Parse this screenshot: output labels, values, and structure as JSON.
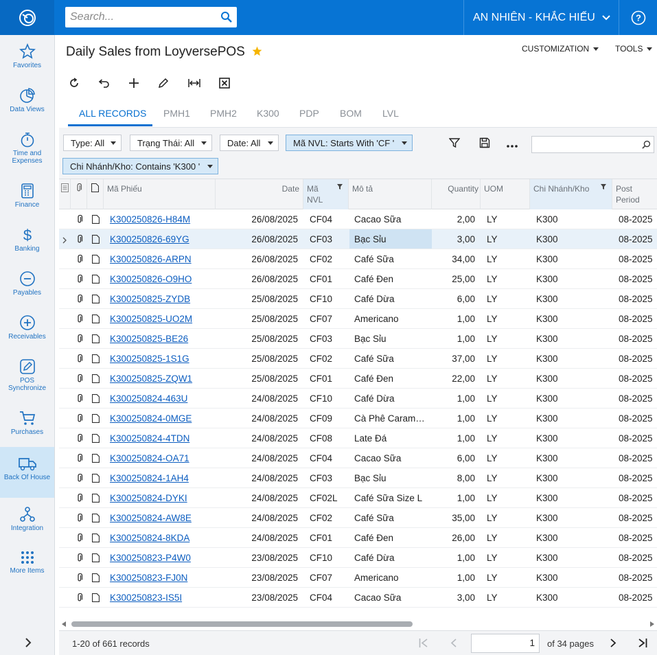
{
  "topbar": {
    "search_placeholder": "Search...",
    "tenant": "AN NHIÊN - KHẮC HIẾU",
    "help": "?"
  },
  "sidebar": {
    "items": [
      {
        "label": "Favorites",
        "icon": "star-icon"
      },
      {
        "label": "Data Views",
        "icon": "pie-chart-icon"
      },
      {
        "label": "Time and Expenses",
        "icon": "stopwatch-icon"
      },
      {
        "label": "Finance",
        "icon": "calculator-icon"
      },
      {
        "label": "Banking",
        "icon": "dollar-icon"
      },
      {
        "label": "Payables",
        "icon": "minus-circle-icon"
      },
      {
        "label": "Receivables",
        "icon": "plus-circle-icon"
      },
      {
        "label": "POS Synchronize",
        "icon": "pencil-square-icon"
      },
      {
        "label": "Purchases",
        "icon": "cart-icon"
      },
      {
        "label": "Back Of House",
        "icon": "truck-icon"
      },
      {
        "label": "Integration",
        "icon": "hierarchy-icon"
      },
      {
        "label": "More Items",
        "icon": "grid-dots-icon"
      }
    ],
    "active_index": 9
  },
  "page": {
    "title": "Daily Sales from LoyversePOS",
    "customization": "CUSTOMIZATION",
    "tools": "TOOLS"
  },
  "tabs": [
    "ALL RECORDS",
    "PMH1",
    "PMH2",
    "K300",
    "PDP",
    "BOM",
    "LVL"
  ],
  "filters": {
    "type": "Type: All",
    "trang_thai": "Trạng Thái: All",
    "date": "Date: All",
    "ma_nvl": "Mã NVL: Starts With 'CF '",
    "chi_nhanh": "Chi Nhánh/Kho: Contains 'K300 '"
  },
  "grid": {
    "headers": {
      "ma_phieu": "Mã Phiếu",
      "date": "Date",
      "ma_nvl": "Mã NVL",
      "mo_ta": "Mô tả",
      "quantity": "Quantity",
      "uom": "UOM",
      "chi_nhanh": "Chi Nhánh/Kho",
      "post_period": "Post Period"
    },
    "rows": [
      [
        "K300250826-H84M",
        "26/08/2025",
        "CF04",
        "Cacao Sữa",
        "2,00",
        "LY",
        "K300",
        "08-2025"
      ],
      [
        "K300250826-69YG",
        "26/08/2025",
        "CF03",
        "Bạc Sỉu",
        "3,00",
        "LY",
        "K300",
        "08-2025"
      ],
      [
        "K300250826-ARPN",
        "26/08/2025",
        "CF02",
        "Café Sữa",
        "34,00",
        "LY",
        "K300",
        "08-2025"
      ],
      [
        "K300250826-O9HO",
        "26/08/2025",
        "CF01",
        "Café Đen",
        "25,00",
        "LY",
        "K300",
        "08-2025"
      ],
      [
        "K300250825-ZYDB",
        "25/08/2025",
        "CF10",
        "Café Dừa",
        "6,00",
        "LY",
        "K300",
        "08-2025"
      ],
      [
        "K300250825-UO2M",
        "25/08/2025",
        "CF07",
        "Americano",
        "1,00",
        "LY",
        "K300",
        "08-2025"
      ],
      [
        "K300250825-BE26",
        "25/08/2025",
        "CF03",
        "Bạc Sỉu",
        "1,00",
        "LY",
        "K300",
        "08-2025"
      ],
      [
        "K300250825-1S1G",
        "25/08/2025",
        "CF02",
        "Café Sữa",
        "37,00",
        "LY",
        "K300",
        "08-2025"
      ],
      [
        "K300250825-ZQW1",
        "25/08/2025",
        "CF01",
        "Café Đen",
        "22,00",
        "LY",
        "K300",
        "08-2025"
      ],
      [
        "K300250824-463U",
        "24/08/2025",
        "CF10",
        "Café Dừa",
        "1,00",
        "LY",
        "K300",
        "08-2025"
      ],
      [
        "K300250824-0MGE",
        "24/08/2025",
        "CF09",
        "Cà Phê Caram…",
        "1,00",
        "LY",
        "K300",
        "08-2025"
      ],
      [
        "K300250824-4TDN",
        "24/08/2025",
        "CF08",
        "Late Đá",
        "1,00",
        "LY",
        "K300",
        "08-2025"
      ],
      [
        "K300250824-OA71",
        "24/08/2025",
        "CF04",
        "Cacao Sữa",
        "6,00",
        "LY",
        "K300",
        "08-2025"
      ],
      [
        "K300250824-1AH4",
        "24/08/2025",
        "CF03",
        "Bạc Sỉu",
        "8,00",
        "LY",
        "K300",
        "08-2025"
      ],
      [
        "K300250824-DYKI",
        "24/08/2025",
        "CF02L",
        "Café Sữa Size L",
        "1,00",
        "LY",
        "K300",
        "08-2025"
      ],
      [
        "K300250824-AW8E",
        "24/08/2025",
        "CF02",
        "Café Sữa",
        "35,00",
        "LY",
        "K300",
        "08-2025"
      ],
      [
        "K300250824-8KDA",
        "24/08/2025",
        "CF01",
        "Café Đen",
        "26,00",
        "LY",
        "K300",
        "08-2025"
      ],
      [
        "K300250823-P4W0",
        "23/08/2025",
        "CF10",
        "Café Dừa",
        "1,00",
        "LY",
        "K300",
        "08-2025"
      ],
      [
        "K300250823-FJ0N",
        "23/08/2025",
        "CF07",
        "Americano",
        "1,00",
        "LY",
        "K300",
        "08-2025"
      ],
      [
        "K300250823-IS5I",
        "23/08/2025",
        "CF04",
        "Cacao Sữa",
        "3,00",
        "LY",
        "K300",
        "08-2025"
      ]
    ],
    "selected_row": 1
  },
  "footer": {
    "records": "1-20 of 661 records",
    "page": "1",
    "of_pages": "of 34 pages"
  },
  "colors": {
    "brand": "#0774d4",
    "link": "#0d5ec0",
    "active_nav": "#cfe6f7",
    "star": "#f5b400"
  }
}
